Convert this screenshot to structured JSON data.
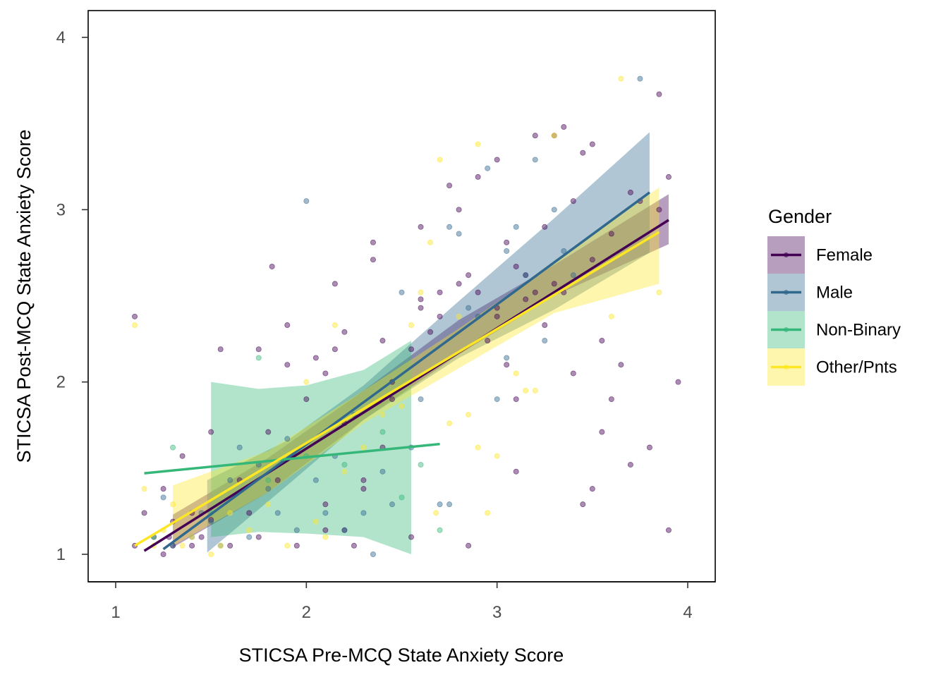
{
  "chart_data": {
    "type": "scatter",
    "xlabel": "STICSA Pre-MCQ State Anxiety Score",
    "ylabel": "STICSA Post-MCQ State Anxiety Score",
    "xlim": [
      0.85,
      4.15
    ],
    "ylim": [
      0.88,
      4.15
    ],
    "x_ticks": [
      "1",
      "2",
      "3",
      "4"
    ],
    "y_ticks": [
      "1",
      "2",
      "3",
      "4"
    ],
    "grid": false,
    "legend": {
      "title": "Gender",
      "position": "right"
    },
    "series": [
      {
        "name": "Female",
        "color": "#440154",
        "points": [
          [
            1.1,
            2.38
          ],
          [
            1.1,
            1.05
          ],
          [
            1.15,
            1.24
          ],
          [
            1.2,
            1.1
          ],
          [
            1.25,
            1.0
          ],
          [
            1.25,
            1.38
          ],
          [
            1.28,
            1.1
          ],
          [
            1.3,
            1.19
          ],
          [
            1.3,
            1.05
          ],
          [
            1.35,
            1.57
          ],
          [
            1.4,
            1.05
          ],
          [
            1.4,
            1.24
          ],
          [
            1.45,
            1.1
          ],
          [
            1.5,
            1.71
          ],
          [
            1.5,
            1.2
          ],
          [
            1.55,
            2.19
          ],
          [
            1.6,
            1.05
          ],
          [
            1.65,
            1.43
          ],
          [
            1.7,
            1.24
          ],
          [
            1.75,
            2.19
          ],
          [
            1.75,
            1.1
          ],
          [
            1.8,
            1.71
          ],
          [
            1.82,
            2.67
          ],
          [
            1.85,
            1.43
          ],
          [
            1.9,
            2.33
          ],
          [
            1.9,
            2.1
          ],
          [
            1.95,
            1.05
          ],
          [
            2.0,
            1.9
          ],
          [
            2.05,
            2.14
          ],
          [
            2.1,
            1.29
          ],
          [
            2.1,
            1.14
          ],
          [
            2.1,
            2.05
          ],
          [
            2.15,
            2.57
          ],
          [
            2.15,
            2.19
          ],
          [
            2.2,
            2.29
          ],
          [
            2.2,
            1.76
          ],
          [
            2.25,
            1.05
          ],
          [
            2.2,
            1.14
          ],
          [
            2.3,
            1.43
          ],
          [
            2.3,
            1.38
          ],
          [
            2.35,
            2.81
          ],
          [
            2.35,
            2.71
          ],
          [
            2.4,
            1.62
          ],
          [
            2.4,
            2.24
          ],
          [
            2.45,
            1.9
          ],
          [
            2.45,
            2.0
          ],
          [
            2.55,
            2.19
          ],
          [
            2.55,
            1.1
          ],
          [
            2.6,
            2.9
          ],
          [
            2.6,
            2.48
          ],
          [
            2.6,
            2.43
          ],
          [
            2.65,
            2.29
          ],
          [
            2.7,
            2.38
          ],
          [
            2.75,
            3.14
          ],
          [
            2.7,
            2.52
          ],
          [
            2.8,
            3.0
          ],
          [
            2.8,
            2.57
          ],
          [
            2.85,
            2.62
          ],
          [
            2.85,
            1.05
          ],
          [
            2.9,
            3.19
          ],
          [
            2.9,
            2.52
          ],
          [
            2.95,
            2.24
          ],
          [
            3.0,
            2.38
          ],
          [
            3.0,
            2.43
          ],
          [
            3.05,
            2.1
          ],
          [
            3.1,
            1.9
          ],
          [
            3.1,
            1.48
          ],
          [
            3.15,
            2.48
          ],
          [
            3.15,
            2.62
          ],
          [
            3.2,
            2.52
          ],
          [
            3.25,
            2.33
          ],
          [
            3.3,
            2.57
          ],
          [
            3.35,
            2.52
          ],
          [
            3.4,
            2.05
          ],
          [
            3.45,
            1.29
          ],
          [
            3.5,
            2.71
          ],
          [
            3.5,
            1.38
          ],
          [
            3.55,
            1.71
          ],
          [
            3.6,
            1.9
          ],
          [
            3.65,
            2.1
          ],
          [
            3.7,
            1.52
          ],
          [
            3.8,
            1.62
          ],
          [
            3.85,
            3.67
          ],
          [
            3.85,
            3.0
          ],
          [
            3.9,
            1.14
          ],
          [
            3.95,
            2.0
          ],
          [
            3.0,
            3.29
          ],
          [
            3.05,
            2.81
          ],
          [
            3.1,
            2.67
          ],
          [
            3.2,
            3.43
          ],
          [
            3.25,
            2.9
          ],
          [
            3.3,
            3.43
          ],
          [
            3.35,
            3.48
          ],
          [
            3.4,
            3.05
          ],
          [
            3.45,
            3.33
          ],
          [
            3.5,
            3.38
          ],
          [
            3.55,
            2.24
          ],
          [
            3.6,
            2.86
          ],
          [
            3.7,
            3.1
          ],
          [
            3.75,
            3.05
          ],
          [
            3.9,
            3.19
          ]
        ]
      },
      {
        "name": "Male",
        "color": "#31688e",
        "points": [
          [
            1.25,
            1.33
          ],
          [
            1.3,
            1.05
          ],
          [
            1.4,
            1.1
          ],
          [
            1.45,
            1.24
          ],
          [
            1.5,
            1.19
          ],
          [
            1.55,
            1.05
          ],
          [
            1.6,
            1.43
          ],
          [
            1.65,
            1.62
          ],
          [
            1.7,
            1.1
          ],
          [
            1.75,
            1.52
          ],
          [
            1.8,
            1.38
          ],
          [
            1.85,
            1.24
          ],
          [
            1.9,
            1.67
          ],
          [
            1.95,
            1.14
          ],
          [
            2.0,
            3.05
          ],
          [
            2.05,
            1.43
          ],
          [
            2.1,
            1.24
          ],
          [
            2.15,
            1.57
          ],
          [
            2.2,
            1.14
          ],
          [
            2.25,
            1.81
          ],
          [
            2.3,
            1.24
          ],
          [
            2.35,
            1.0
          ],
          [
            2.4,
            1.48
          ],
          [
            2.45,
            1.29
          ],
          [
            2.5,
            2.52
          ],
          [
            2.55,
            1.62
          ],
          [
            2.6,
            1.9
          ],
          [
            2.7,
            1.29
          ],
          [
            2.75,
            1.29
          ],
          [
            2.75,
            2.9
          ],
          [
            2.8,
            2.86
          ],
          [
            2.85,
            2.43
          ],
          [
            2.9,
            2.38
          ],
          [
            2.95,
            3.24
          ],
          [
            3.0,
            1.9
          ],
          [
            3.05,
            2.14
          ],
          [
            3.05,
            2.76
          ],
          [
            3.1,
            2.9
          ],
          [
            3.15,
            2.62
          ],
          [
            3.2,
            3.29
          ],
          [
            3.25,
            2.24
          ],
          [
            3.3,
            3.0
          ],
          [
            3.35,
            2.76
          ],
          [
            3.4,
            2.62
          ],
          [
            3.75,
            3.76
          ]
        ]
      },
      {
        "name": "Non-Binary",
        "color": "#35b779",
        "points": [
          [
            1.2,
            1.1
          ],
          [
            1.3,
            1.62
          ],
          [
            1.5,
            1.24
          ],
          [
            1.75,
            2.14
          ],
          [
            1.8,
            1.43
          ],
          [
            2.0,
            1.57
          ],
          [
            2.2,
            1.52
          ],
          [
            2.4,
            1.71
          ],
          [
            2.5,
            1.33
          ],
          [
            2.6,
            1.52
          ],
          [
            2.7,
            1.14
          ]
        ]
      },
      {
        "name": "Other/Pnts",
        "color": "#fde725",
        "points": [
          [
            1.1,
            2.33
          ],
          [
            1.15,
            1.38
          ],
          [
            1.2,
            1.05
          ],
          [
            1.25,
            1.14
          ],
          [
            1.3,
            1.29
          ],
          [
            1.35,
            1.05
          ],
          [
            1.4,
            1.1
          ],
          [
            1.5,
            1.0
          ],
          [
            1.55,
            1.05
          ],
          [
            1.6,
            1.24
          ],
          [
            1.7,
            1.14
          ],
          [
            1.8,
            1.29
          ],
          [
            1.9,
            1.05
          ],
          [
            2.0,
            2.0
          ],
          [
            2.05,
            1.19
          ],
          [
            2.1,
            1.1
          ],
          [
            2.15,
            2.33
          ],
          [
            2.2,
            1.48
          ],
          [
            2.3,
            1.62
          ],
          [
            2.4,
            1.81
          ],
          [
            2.5,
            1.86
          ],
          [
            2.55,
            2.33
          ],
          [
            2.6,
            2.52
          ],
          [
            2.65,
            2.81
          ],
          [
            2.7,
            3.29
          ],
          [
            2.75,
            1.76
          ],
          [
            2.8,
            2.38
          ],
          [
            2.85,
            1.81
          ],
          [
            2.9,
            3.38
          ],
          [
            2.95,
            1.24
          ],
          [
            3.0,
            1.57
          ],
          [
            3.1,
            2.05
          ],
          [
            3.15,
            1.95
          ],
          [
            3.2,
            1.95
          ],
          [
            3.3,
            3.43
          ],
          [
            3.6,
            2.38
          ],
          [
            3.65,
            3.76
          ],
          [
            3.85,
            2.52
          ],
          [
            2.68,
            1.24
          ],
          [
            2.9,
            1.62
          ]
        ]
      }
    ],
    "fits": [
      {
        "name": "Female",
        "color": "#440154",
        "x": [
          1.15,
          3.9
        ],
        "y": [
          1.02,
          2.94
        ],
        "ci_low_start": 0.9,
        "ci_high_start": 1.2
      },
      {
        "name": "Male",
        "color": "#31688e",
        "x": [
          1.25,
          3.8
        ],
        "y": [
          1.03,
          3.1
        ]
      },
      {
        "name": "Non-Binary",
        "color": "#35b779",
        "x": [
          1.15,
          2.7
        ],
        "y": [
          1.47,
          1.64
        ]
      },
      {
        "name": "Other/Pnts",
        "color": "#fde725",
        "x": [
          1.1,
          3.85
        ],
        "y": [
          1.05,
          2.87
        ]
      }
    ],
    "ribbons": [
      {
        "name": "Female",
        "color": "#440154",
        "x": [
          1.3,
          1.8,
          2.3,
          2.8,
          3.3,
          3.9
        ],
        "lo": [
          1.04,
          1.36,
          1.78,
          2.16,
          2.5,
          2.8
        ],
        "hi": [
          1.23,
          1.56,
          1.95,
          2.36,
          2.68,
          3.09
        ]
      },
      {
        "name": "Male",
        "color": "#31688e",
        "x": [
          1.48,
          1.9,
          2.3,
          2.8,
          3.3,
          3.8
        ],
        "lo": [
          1.01,
          1.4,
          1.78,
          2.14,
          2.42,
          2.75
        ],
        "hi": [
          1.43,
          1.66,
          1.98,
          2.47,
          2.95,
          3.45
        ]
      },
      {
        "name": "Non-Binary",
        "color": "#35b779",
        "x": [
          1.5,
          1.75,
          2.0,
          2.3,
          2.55
        ],
        "lo": [
          1.1,
          1.13,
          1.12,
          1.1,
          1.0
        ],
        "hi": [
          2.0,
          1.96,
          1.98,
          2.07,
          2.24
        ]
      },
      {
        "name": "Other/Pnts",
        "color": "#fde725",
        "x": [
          1.3,
          1.8,
          2.3,
          2.8,
          3.3,
          3.85
        ],
        "lo": [
          1.05,
          1.36,
          1.76,
          2.08,
          2.4,
          2.57
        ],
        "hi": [
          1.4,
          1.6,
          1.95,
          2.31,
          2.69,
          3.13
        ]
      }
    ]
  }
}
